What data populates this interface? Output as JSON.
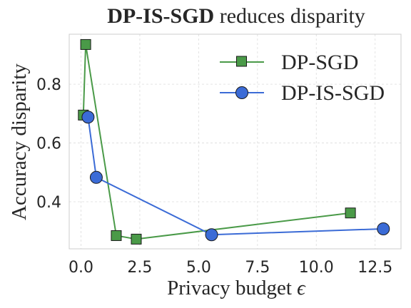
{
  "chart_data": {
    "type": "line",
    "title_bold": "DP-IS-SGD",
    "title_rest": " reduces disparity",
    "xlabel": "Privacy budget",
    "xlabel_symbol": "ϵ",
    "ylabel": "Accuracy disparity",
    "xlim": [
      -0.5,
      13.6
    ],
    "ylim": [
      0.24,
      0.97
    ],
    "xticks": [
      0.0,
      2.5,
      5.0,
      7.5,
      10.0,
      12.5
    ],
    "xtick_labels": [
      "0.0",
      "2.5",
      "5.0",
      "7.5",
      "10.0",
      "12.5"
    ],
    "yticks": [
      0.4,
      0.6,
      0.8
    ],
    "ytick_labels": [
      "0.4",
      "0.6",
      "0.8"
    ],
    "grid": true,
    "legend_position": "upper right",
    "series": [
      {
        "name": "DP-SGD",
        "color": "#4a9a48",
        "marker": "square",
        "x": [
          0.1,
          0.2,
          1.5,
          2.35,
          11.45
        ],
        "y": [
          0.695,
          0.935,
          0.285,
          0.273,
          0.362
        ]
      },
      {
        "name": "DP-IS-SGD",
        "color": "#3b6bd6",
        "marker": "circle",
        "x": [
          0.3,
          0.65,
          5.55,
          12.85
        ],
        "y": [
          0.688,
          0.483,
          0.288,
          0.308
        ]
      }
    ]
  }
}
